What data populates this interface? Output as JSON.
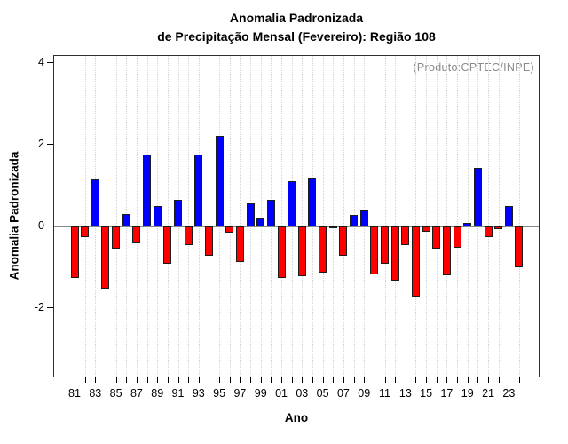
{
  "header": {
    "title_line1": "Anomalia Padronizada",
    "title_line2": "de Precipitação Mensal (Fevereiro): Região 108"
  },
  "chart_data": {
    "type": "bar",
    "title": "Anomalia Padronizada de Precipitação Mensal (Fevereiro): Região 108",
    "xlabel": "Ano",
    "ylabel": "Anomalia Padronizada",
    "annotation": "(Produto:CPTEC/INPE)",
    "x": [
      1981,
      1982,
      1983,
      1984,
      1985,
      1986,
      1987,
      1988,
      1989,
      1990,
      1991,
      1992,
      1993,
      1994,
      1995,
      1996,
      1997,
      1998,
      1999,
      2000,
      2001,
      2002,
      2003,
      2004,
      2005,
      2006,
      2007,
      2008,
      2009,
      2010,
      2011,
      2012,
      2013,
      2014,
      2015,
      2016,
      2017,
      2018,
      2019,
      2020,
      2021,
      2022,
      2023,
      2024
    ],
    "values": [
      -1.25,
      -0.27,
      1.16,
      -1.52,
      -0.55,
      0.3,
      -0.42,
      1.77,
      0.51,
      -0.91,
      0.65,
      -0.45,
      1.77,
      -0.71,
      2.22,
      -0.15,
      -0.88,
      0.57,
      0.2,
      0.65,
      -1.26,
      1.1,
      -1.21,
      1.18,
      -1.13,
      -0.03,
      -0.71,
      0.28,
      0.4,
      -1.17,
      -0.91,
      -1.33,
      -0.46,
      -1.72,
      -0.12,
      -0.55,
      -1.2,
      -0.53,
      0.09,
      1.44,
      -0.27,
      -0.06,
      0.49,
      -1.0
    ],
    "yticks": [
      4,
      2,
      0,
      -2
    ],
    "xtick_labels": [
      "81",
      "83",
      "85",
      "87",
      "89",
      "91",
      "93",
      "95",
      "97",
      "99",
      "01",
      "03",
      "05",
      "07",
      "09",
      "11",
      "13",
      "15",
      "17",
      "19",
      "21",
      "23"
    ],
    "ylim": [
      -3.7,
      4.2
    ],
    "grid": "vertical-dotted",
    "legend": "none",
    "colors": {
      "positive": "#0000FF",
      "negative": "#FF0000",
      "bar_border": "#1c1c1c",
      "zero_line": "#888888",
      "grid": "#d4d4d4",
      "axis": "#000000",
      "annotation": "#8a8a8a"
    }
  }
}
